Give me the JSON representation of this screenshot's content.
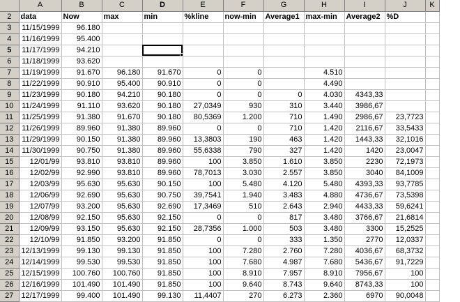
{
  "sheet": {
    "columns": [
      "A",
      "B",
      "C",
      "D",
      "E",
      "F",
      "G",
      "H",
      "I",
      "J",
      "K"
    ],
    "active_column": "D",
    "active_row": "5",
    "rows": [
      {
        "n": "2",
        "cells": [
          "data",
          "Now",
          "max",
          "min",
          "%kline",
          "now-min",
          "Average1",
          "max-min",
          "Average2",
          "%D",
          ""
        ]
      },
      {
        "n": "3",
        "cells": [
          "11/15/1999",
          "96.180",
          "",
          "",
          "",
          "",
          "",
          "",
          "",
          "",
          ""
        ]
      },
      {
        "n": "4",
        "cells": [
          "11/16/1999",
          "95.400",
          "",
          "",
          "",
          "",
          "",
          "",
          "",
          "",
          ""
        ]
      },
      {
        "n": "5",
        "cells": [
          "11/17/1999",
          "94.210",
          "",
          "",
          "",
          "",
          "",
          "",
          "",
          "",
          ""
        ]
      },
      {
        "n": "6",
        "cells": [
          "11/18/1999",
          "93.620",
          "",
          "",
          "",
          "",
          "",
          "",
          "",
          "",
          ""
        ]
      },
      {
        "n": "7",
        "cells": [
          "11/19/1999",
          "91.670",
          "96.180",
          "91.670",
          "0",
          "0",
          "",
          "4.510",
          "",
          "",
          ""
        ]
      },
      {
        "n": "8",
        "cells": [
          "11/22/1999",
          "90.910",
          "95.400",
          "90.910",
          "0",
          "0",
          "",
          "4.490",
          "",
          "",
          ""
        ]
      },
      {
        "n": "9",
        "cells": [
          "11/23/1999",
          "90.180",
          "94.210",
          "90.180",
          "0",
          "0",
          "0",
          "4.030",
          "4343,33",
          "",
          ""
        ]
      },
      {
        "n": "10",
        "cells": [
          "11/24/1999",
          "91.110",
          "93.620",
          "90.180",
          "27,0349",
          "930",
          "310",
          "3.440",
          "3986,67",
          "",
          ""
        ]
      },
      {
        "n": "11",
        "cells": [
          "11/25/1999",
          "91.380",
          "91.670",
          "90.180",
          "80,5369",
          "1.200",
          "710",
          "1.490",
          "2986,67",
          "23,7723",
          ""
        ]
      },
      {
        "n": "12",
        "cells": [
          "11/26/1999",
          "89.960",
          "91.380",
          "89.960",
          "0",
          "0",
          "710",
          "1.420",
          "2116,67",
          "33,5433",
          ""
        ]
      },
      {
        "n": "13",
        "cells": [
          "11/29/1999",
          "90.150",
          "91.380",
          "89.960",
          "13,3803",
          "190",
          "463",
          "1.420",
          "1443,33",
          "32,1016",
          ""
        ]
      },
      {
        "n": "14",
        "cells": [
          "11/30/1999",
          "90.750",
          "91.380",
          "89.960",
          "55,6338",
          "790",
          "327",
          "1.420",
          "1420",
          "23,0047",
          ""
        ]
      },
      {
        "n": "15",
        "cells": [
          "12/01/99",
          "93.810",
          "93.810",
          "89.960",
          "100",
          "3.850",
          "1.610",
          "3.850",
          "2230",
          "72,1973",
          ""
        ]
      },
      {
        "n": "16",
        "cells": [
          "12/02/99",
          "92.990",
          "93.810",
          "89.960",
          "78,7013",
          "3.030",
          "2.557",
          "3.850",
          "3040",
          "84,1009",
          ""
        ]
      },
      {
        "n": "17",
        "cells": [
          "12/03/99",
          "95.630",
          "95.630",
          "90.150",
          "100",
          "5.480",
          "4.120",
          "5.480",
          "4393,33",
          "93,7785",
          ""
        ]
      },
      {
        "n": "18",
        "cells": [
          "12/06/99",
          "92.690",
          "95.630",
          "90.750",
          "39,7541",
          "1.940",
          "3.483",
          "4.880",
          "4736,67",
          "73,5398",
          ""
        ]
      },
      {
        "n": "19",
        "cells": [
          "12/07/99",
          "93.200",
          "95.630",
          "92.690",
          "17,3469",
          "510",
          "2.643",
          "2.940",
          "4433,33",
          "59,6241",
          ""
        ]
      },
      {
        "n": "20",
        "cells": [
          "12/08/99",
          "92.150",
          "95.630",
          "92.150",
          "0",
          "0",
          "817",
          "3.480",
          "3766,67",
          "21,6814",
          ""
        ]
      },
      {
        "n": "21",
        "cells": [
          "12/09/99",
          "93.150",
          "95.630",
          "92.150",
          "28,7356",
          "1.000",
          "503",
          "3.480",
          "3300",
          "15,2525",
          ""
        ]
      },
      {
        "n": "22",
        "cells": [
          "12/10/99",
          "91.850",
          "93.200",
          "91.850",
          "0",
          "0",
          "333",
          "1.350",
          "2770",
          "12,0337",
          ""
        ]
      },
      {
        "n": "23",
        "cells": [
          "12/13/1999",
          "99.130",
          "99.130",
          "91.850",
          "100",
          "7.280",
          "2.760",
          "7.280",
          "4036,67",
          "68,3732",
          ""
        ]
      },
      {
        "n": "24",
        "cells": [
          "12/14/1999",
          "99.530",
          "99.530",
          "91.850",
          "100",
          "7.680",
          "4.987",
          "7.680",
          "5436,67",
          "91,7229",
          ""
        ]
      },
      {
        "n": "25",
        "cells": [
          "12/15/1999",
          "100.760",
          "100.760",
          "91.850",
          "100",
          "8.910",
          "7.957",
          "8.910",
          "7956,67",
          "100",
          ""
        ]
      },
      {
        "n": "26",
        "cells": [
          "12/16/1999",
          "101.490",
          "101.490",
          "91.850",
          "100",
          "9.640",
          "8.743",
          "9.640",
          "8743,33",
          "100",
          ""
        ]
      },
      {
        "n": "27",
        "cells": [
          "12/17/1999",
          "99.400",
          "101.490",
          "99.130",
          "11,4407",
          "270",
          "6.273",
          "2.360",
          "6970",
          "90,0048",
          ""
        ]
      }
    ]
  }
}
